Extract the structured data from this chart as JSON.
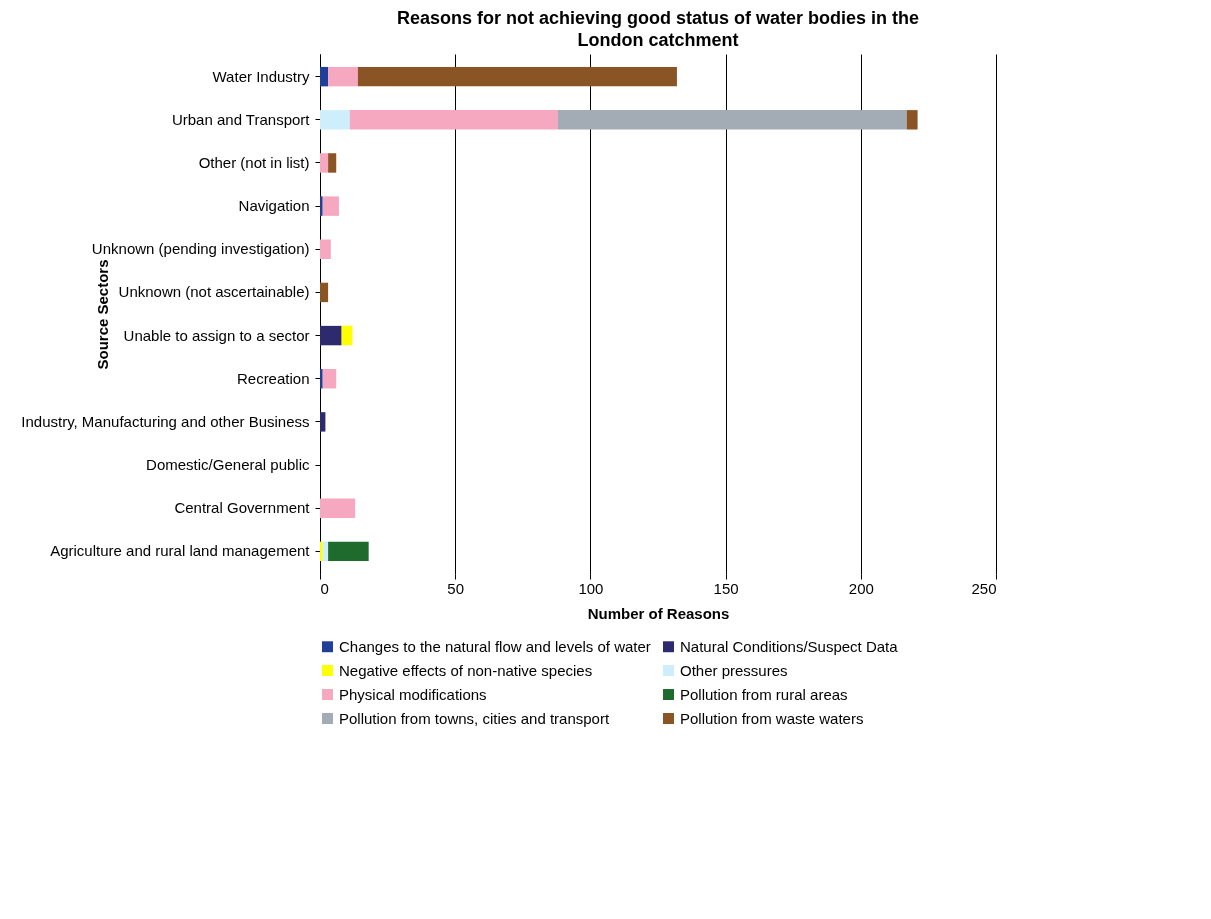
{
  "chart_data": {
    "type": "bar",
    "orientation": "horizontal",
    "stacked": true,
    "title": "Reasons for not achieving good status of water bodies in the London catchment",
    "xlabel": "Number of Reasons",
    "ylabel": "Source Sectors",
    "categories": [
      "Water Industry",
      "Urban and Transport",
      "Other (not in list)",
      "Navigation",
      "Unknown (pending investigation)",
      "Unknown (not ascertainable)",
      "Unable to assign to a sector",
      "Recreation",
      "Industry, Manufacturing and other Business",
      "Domestic/General public",
      "Central Government",
      "Agriculture and rural land management"
    ],
    "series": [
      {
        "name": "Changes to the natural flow and levels of water",
        "color": "#1f3f99",
        "values": [
          3,
          0,
          0,
          1,
          0,
          0,
          0,
          1,
          0,
          0,
          0,
          0
        ]
      },
      {
        "name": "Natural Conditions/Suspect Data",
        "color": "#2e2a6e",
        "values": [
          0,
          0,
          0,
          0,
          0,
          0,
          8,
          0,
          2,
          0,
          0,
          0
        ]
      },
      {
        "name": "Negative effects of non-native species",
        "color": "#ffff00",
        "values": [
          0,
          0,
          0,
          0,
          0,
          0,
          4,
          0,
          0,
          0,
          0,
          1
        ]
      },
      {
        "name": "Other pressures",
        "color": "#cdeefa",
        "values": [
          0,
          11,
          0,
          0,
          0,
          0,
          0,
          0,
          0,
          0,
          0,
          2
        ]
      },
      {
        "name": "Physical modifications",
        "color": "#f6a8c0",
        "values": [
          11,
          77,
          3,
          6,
          4,
          0,
          0,
          5,
          0,
          0,
          13,
          0
        ]
      },
      {
        "name": "Pollution from rural areas",
        "color": "#1f6b2e",
        "values": [
          0,
          0,
          0,
          0,
          0,
          0,
          0,
          0,
          0,
          0,
          0,
          15
        ]
      },
      {
        "name": "Pollution from towns, cities and transport",
        "color": "#a3acb4",
        "values": [
          0,
          129,
          0,
          0,
          0,
          0,
          0,
          0,
          0,
          0,
          0,
          0
        ]
      },
      {
        "name": "Pollution from waste waters",
        "color": "#8b5424",
        "values": [
          118,
          4,
          3,
          0,
          0,
          3,
          0,
          0,
          0,
          0,
          0,
          0
        ]
      }
    ],
    "xlim": [
      0,
      250
    ],
    "xticks": [
      0,
      50,
      100,
      150,
      200,
      250
    ],
    "grid": "x",
    "legend": "bottom"
  }
}
